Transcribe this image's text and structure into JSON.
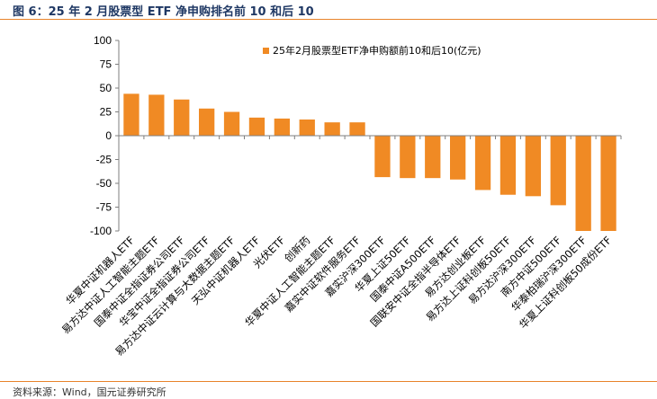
{
  "header": {
    "title": "图 6：25 年 2 月股票型 ETF 净申购排名前 10 和后 10"
  },
  "footer": {
    "source": "资料来源：Wind，国元证券研究所"
  },
  "colors": {
    "bar": "#f08a24",
    "rule": "#e8832a",
    "axis": "#7f7f7f"
  },
  "chart_data": {
    "type": "bar",
    "title": "",
    "xlabel": "",
    "ylabel": "",
    "ylim": [
      -100,
      100
    ],
    "yticks": [
      100,
      75,
      50,
      25,
      0,
      -25,
      -50,
      -75,
      -100
    ],
    "grid": false,
    "legend_position": "top-right",
    "categories": [
      "华夏中证机器人ETF",
      "易方达中证人工智能主题ETF",
      "国泰中证全指证券公司ETF",
      "华宝中证全指证券公司ETF",
      "易方达中证云计算与大数据主题ETF",
      "天弘中证机器人ETF",
      "光伏ETF",
      "创新药",
      "华夏中证人工智能主题ETF",
      "嘉实中证软件服务ETF",
      "嘉实沪深300ETF",
      "华夏上证50ETF",
      "国泰中证A500ETF",
      "国联安中证全指半导体ETF",
      "易方达创业板ETF",
      "易方达上证科创板50ETF",
      "易方达沪深300ETF",
      "南方中证500ETF",
      "华泰柏瑞沪深300ETF",
      "华夏上证科创板50成份ETF"
    ],
    "series": [
      {
        "name": "25年2月股票型ETF净申购额前10和后10(亿元)",
        "values": [
          44,
          43,
          38,
          28.5,
          25,
          19,
          18,
          17,
          14,
          14,
          -43.5,
          -44.5,
          -44.5,
          -46,
          -57,
          -62,
          -63.5,
          -73,
          -100,
          -100
        ]
      }
    ]
  }
}
